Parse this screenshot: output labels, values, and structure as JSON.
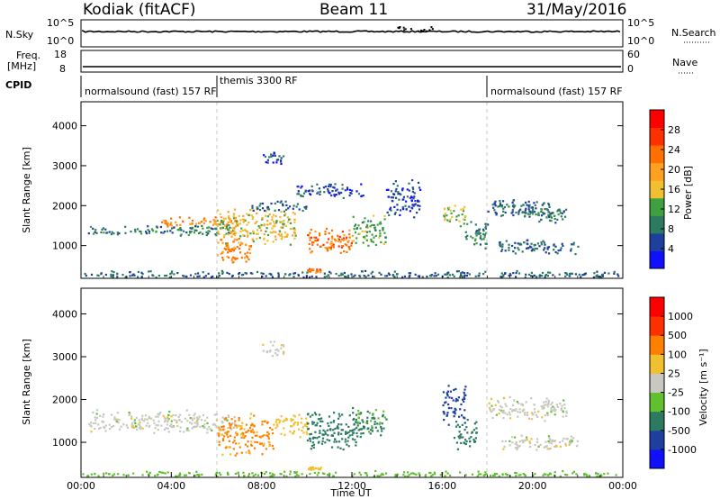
{
  "header": {
    "title_left": "Kodiak (fitACF)",
    "title_center": "Beam 11",
    "title_right": "31/May/2016"
  },
  "strip_panels": {
    "nsky": {
      "left_label": "N.Sky",
      "right_label": "N.Search",
      "left_ticks": [
        "10^5",
        "10^0"
      ],
      "right_ticks": [
        "10^5",
        "10^0"
      ]
    },
    "freq": {
      "left_label_1": "Freq.",
      "left_label_2": "[MHz]",
      "right_label": "Nave",
      "left_ticks": [
        "18",
        "8"
      ],
      "right_ticks": [
        "60",
        "0"
      ]
    },
    "cpid": {
      "label": "CPID",
      "segments": [
        {
          "text": "normalsound (fast) 157 RF",
          "start_hour": 0.0
        },
        {
          "text": "themis 3300 RF",
          "start_hour": 6.0
        },
        {
          "text": "normalsound (fast) 157 RF",
          "start_hour": 18.0
        }
      ]
    }
  },
  "chart_data": [
    {
      "type": "heatmap",
      "title": "",
      "xlabel": "",
      "ylabel": "Slant Range [km]",
      "x_unit": "hours UT",
      "xlim": [
        0,
        24
      ],
      "ylim": [
        180,
        4600
      ],
      "yticks": [
        1000,
        2000,
        3000,
        4000
      ],
      "colorbar": {
        "label": "Power [dB]",
        "ticks": [
          "28",
          "24",
          "20",
          "16",
          "12",
          "8",
          "4"
        ],
        "colors": [
          "#1010ff",
          "#1f3f9f",
          "#2c7a60",
          "#3fa03f",
          "#f0c030",
          "#ffa020",
          "#ff7000",
          "#ff3000",
          "#ff0000"
        ]
      },
      "regions": [
        {
          "x_start": 0.3,
          "x_end": 6.8,
          "y_center": 1400,
          "y_width": 150,
          "value_db": 10
        },
        {
          "x_start": 3.5,
          "x_end": 7.0,
          "y_center": 1600,
          "y_width": 150,
          "value_db": 24
        },
        {
          "x_start": 6.0,
          "x_end": 9.5,
          "y_center": 1500,
          "y_width": 500,
          "value_db": 18
        },
        {
          "x_start": 6.0,
          "x_end": 7.5,
          "y_center": 900,
          "y_width": 400,
          "value_db": 24
        },
        {
          "x_start": 7.5,
          "x_end": 10.0,
          "y_center": 2000,
          "y_width": 150,
          "value_db": 8
        },
        {
          "x_start": 10.0,
          "x_end": 12.0,
          "y_center": 1100,
          "y_width": 400,
          "value_db": 26
        },
        {
          "x_start": 12.0,
          "x_end": 13.5,
          "y_center": 1400,
          "y_width": 400,
          "value_db": 14
        },
        {
          "x_start": 10.0,
          "x_end": 10.6,
          "y_center": 400,
          "y_width": 60,
          "value_db": 26
        },
        {
          "x_start": 13.5,
          "x_end": 15.0,
          "y_center": 2200,
          "y_width": 500,
          "value_db": 6
        },
        {
          "x_start": 16.0,
          "x_end": 17.0,
          "y_center": 1800,
          "y_width": 300,
          "value_db": 16
        },
        {
          "x_start": 17.0,
          "x_end": 18.0,
          "y_center": 1300,
          "y_width": 400,
          "value_db": 10
        },
        {
          "x_start": 18.0,
          "x_end": 21.0,
          "y_center": 1950,
          "y_width": 250,
          "value_db": 8
        },
        {
          "x_start": 18.5,
          "x_end": 22.0,
          "y_center": 1000,
          "y_width": 200,
          "value_db": 8
        },
        {
          "x_start": 19.5,
          "x_end": 21.5,
          "y_center": 1800,
          "y_width": 250,
          "value_db": 10
        },
        {
          "x_start": 8.0,
          "x_end": 9.0,
          "y_center": 3200,
          "y_width": 200,
          "value_db": 6
        },
        {
          "x_start": 9.5,
          "x_end": 12.5,
          "y_center": 2400,
          "y_width": 200,
          "value_db": 6
        },
        {
          "x_start": 0.0,
          "x_end": 24.0,
          "y_center": 280,
          "y_width": 120,
          "value_db": 8
        }
      ]
    },
    {
      "type": "heatmap",
      "title": "",
      "xlabel": "Time UT",
      "ylabel": "Slant Range [km]",
      "x_unit": "hours UT",
      "xlim": [
        0,
        24
      ],
      "ylim": [
        180,
        4600
      ],
      "yticks": [
        1000,
        2000,
        3000,
        4000
      ],
      "xticks": [
        "00:00",
        "04:00",
        "08:00",
        "12:00",
        "16:00",
        "20:00",
        "00:00"
      ],
      "colorbar": {
        "label": "Velocity [m s⁻¹]",
        "ticks": [
          "1000",
          "500",
          "100",
          "25",
          "-25",
          "-100",
          "-500",
          "-1000"
        ],
        "colors": [
          "#1010ff",
          "#1f3f9f",
          "#2c7a60",
          "#60c030",
          "#c8c8c0",
          "#f0c030",
          "#ff8000",
          "#ff3000",
          "#ff0000"
        ]
      },
      "regions": [
        {
          "x_start": 0.3,
          "x_end": 6.8,
          "y_center": 1500,
          "y_width": 300,
          "value_ms": 0
        },
        {
          "x_start": 6.0,
          "x_end": 8.5,
          "y_center": 1200,
          "y_width": 500,
          "value_ms": 120
        },
        {
          "x_start": 8.5,
          "x_end": 10.0,
          "y_center": 1400,
          "y_width": 300,
          "value_ms": 60
        },
        {
          "x_start": 10.0,
          "x_end": 12.5,
          "y_center": 1300,
          "y_width": 500,
          "value_ms": -200
        },
        {
          "x_start": 12.0,
          "x_end": 13.5,
          "y_center": 1500,
          "y_width": 400,
          "value_ms": -120
        },
        {
          "x_start": 10.0,
          "x_end": 10.6,
          "y_center": 400,
          "y_width": 60,
          "value_ms": 50
        },
        {
          "x_start": 16.0,
          "x_end": 17.0,
          "y_center": 1900,
          "y_width": 500,
          "value_ms": -700
        },
        {
          "x_start": 16.5,
          "x_end": 17.5,
          "y_center": 1200,
          "y_width": 400,
          "value_ms": -200
        },
        {
          "x_start": 18.0,
          "x_end": 21.5,
          "y_center": 1800,
          "y_width": 300,
          "value_ms": 0
        },
        {
          "x_start": 18.5,
          "x_end": 22.0,
          "y_center": 1000,
          "y_width": 200,
          "value_ms": 0
        },
        {
          "x_start": 8.0,
          "x_end": 9.0,
          "y_center": 3200,
          "y_width": 200,
          "value_ms": 0
        },
        {
          "x_start": 0.0,
          "x_end": 24.0,
          "y_center": 260,
          "y_width": 100,
          "value_ms": -60
        }
      ]
    }
  ]
}
